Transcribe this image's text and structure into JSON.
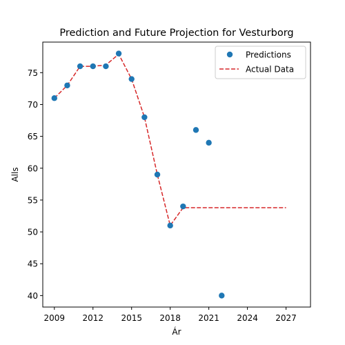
{
  "chart_data": {
    "type": "scatter",
    "title": "Prediction and Future Projection for Vesturborg",
    "xlabel": "Ár",
    "ylabel": "Alls",
    "xlim": [
      2008.1,
      2028.9
    ],
    "ylim": [
      38.2,
      79.8
    ],
    "xticks": [
      2009,
      2012,
      2015,
      2018,
      2021,
      2024,
      2027
    ],
    "yticks": [
      40,
      45,
      50,
      55,
      60,
      65,
      70,
      75
    ],
    "grid": false,
    "legend_position": "top-right",
    "series": [
      {
        "name": "Predictions",
        "kind": "scatter",
        "color": "#1f77b4",
        "x": [
          2009,
          2010,
          2011,
          2012,
          2013,
          2014,
          2015,
          2016,
          2017,
          2018,
          2019,
          2020,
          2021,
          2022
        ],
        "y": [
          71,
          73,
          76,
          76,
          76,
          78,
          74,
          68,
          59,
          51,
          54,
          66,
          64,
          40
        ]
      },
      {
        "name": "Actual Data",
        "kind": "line",
        "style": "dashed",
        "color": "#d62728",
        "x": [
          2009,
          2010,
          2011,
          2012,
          2013,
          2014,
          2015,
          2016,
          2017,
          2018,
          2019,
          2027
        ],
        "y": [
          71,
          73,
          76,
          76,
          76.2,
          77.9,
          74,
          68,
          59,
          51,
          53.8,
          53.8
        ]
      }
    ]
  }
}
